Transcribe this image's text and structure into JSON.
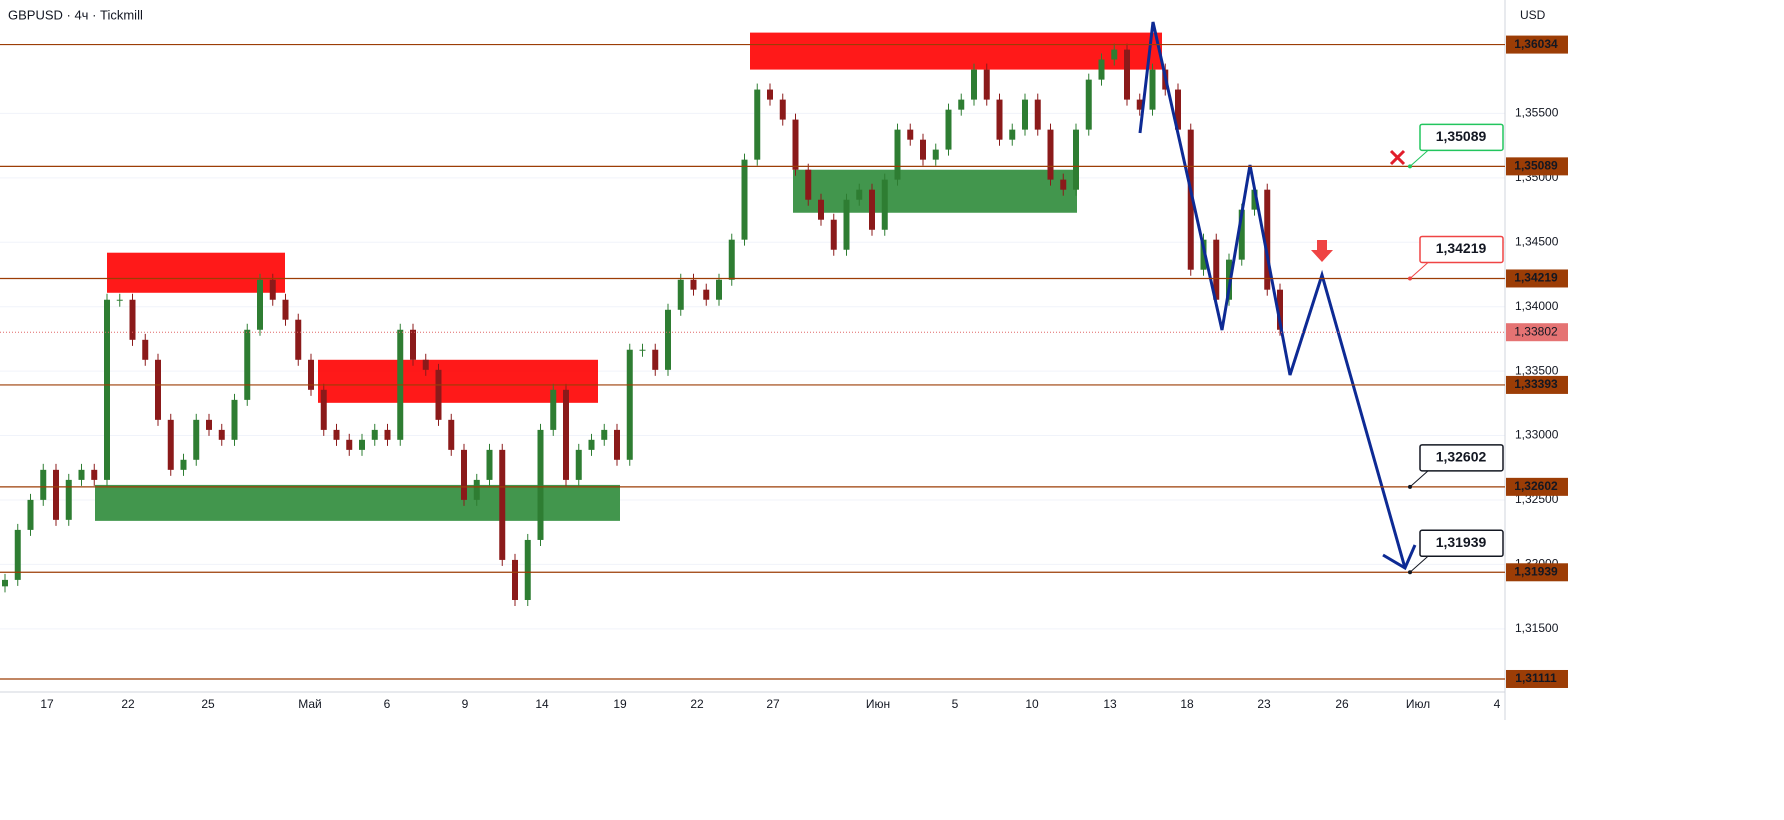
{
  "header": {
    "title": "GBPUSD · 4ч · Tickmill",
    "currency": "USD"
  },
  "chart_data": {
    "type": "candlestick",
    "closes": [
      1.3188,
      1.32268,
      1.32501,
      1.32734,
      1.32346,
      1.32656,
      1.32734,
      1.32656,
      1.34054,
      1.34054,
      1.33743,
      1.33588,
      1.33122,
      1.32734,
      1.32812,
      1.33122,
      1.33044,
      1.32967,
      1.33277,
      1.33821,
      1.34209,
      1.34054,
      1.33899,
      1.33588,
      1.33355,
      1.33044,
      1.32967,
      1.32889,
      1.32967,
      1.33044,
      1.32967,
      1.33821,
      1.33588,
      1.3351,
      1.33122,
      1.32889,
      1.32501,
      1.32656,
      1.32889,
      1.32035,
      1.31724,
      1.3219,
      1.33044,
      1.33355,
      1.32656,
      1.32889,
      1.32967,
      1.33044,
      1.32812,
      1.33666,
      1.33666,
      1.3351,
      1.33976,
      1.34209,
      1.34132,
      1.34054,
      1.34209,
      1.3452,
      1.35141,
      1.35685,
      1.35607,
      1.35452,
      1.35063,
      1.3483,
      1.34675,
      1.34442,
      1.3483,
      1.34908,
      1.34597,
      1.34986,
      1.35374,
      1.35296,
      1.35141,
      1.35219,
      1.35529,
      1.35607,
      1.3584,
      1.35607,
      1.35296,
      1.35374,
      1.35607,
      1.35374,
      1.34986,
      1.34908,
      1.35374,
      1.35762,
      1.35918,
      1.35995,
      1.35607,
      1.35529,
      1.3584,
      1.35685,
      1.35374,
      1.34287,
      1.3452,
      1.34054,
      1.34365,
      1.34753,
      1.34908,
      1.34132,
      1.33821
    ],
    "up_color": "#2e7d32",
    "down_color": "#8b1a1a",
    "ylim": [
      1.3101,
      1.3638
    ],
    "yticks": [
      {
        "value": 1.315,
        "label": "1,31500"
      },
      {
        "value": 1.32,
        "label": "1,32000"
      },
      {
        "value": 1.325,
        "label": "1,32500"
      },
      {
        "value": 1.33,
        "label": "1,33000"
      },
      {
        "value": 1.335,
        "label": "1,33500"
      },
      {
        "value": 1.34,
        "label": "1,34000"
      },
      {
        "value": 1.345,
        "label": "1,34500"
      },
      {
        "value": 1.35,
        "label": "1,35000"
      },
      {
        "value": 1.355,
        "label": "1,35500"
      }
    ],
    "grid": true,
    "levels": [
      {
        "value": 1.36034,
        "label": "1,36034"
      },
      {
        "value": 1.35089,
        "label": "1,35089"
      },
      {
        "value": 1.34219,
        "label": "1,34219"
      },
      {
        "value": 1.33393,
        "label": "1,33393"
      },
      {
        "value": 1.32602,
        "label": "1,32602"
      },
      {
        "value": 1.31939,
        "label": "1,31939"
      },
      {
        "value": 1.31111,
        "label": "1,31111"
      }
    ],
    "level_color": "#9c3d06",
    "current_price": {
      "value": 1.33802,
      "label": "1,33802"
    },
    "callouts": [
      {
        "value": 1.35089,
        "label": "1,35089",
        "color": "#22c55e"
      },
      {
        "value": 1.34219,
        "label": "1,34219",
        "color": "#ef4444"
      },
      {
        "value": 1.32602,
        "label": "1,32602",
        "color": "#131722"
      },
      {
        "value": 1.31939,
        "label": "1,31939",
        "color": "#131722"
      }
    ],
    "zones": [
      {
        "top": 1.36127,
        "bottom": 1.3584,
        "color": "#ff0000"
      },
      {
        "top": 1.35063,
        "bottom": 1.34729,
        "color": "#2e8b3a"
      },
      {
        "top": 1.34419,
        "bottom": 1.34108,
        "color": "#ff0000"
      },
      {
        "top": 1.33588,
        "bottom": 1.33254,
        "color": "#ff0000"
      },
      {
        "top": 1.32617,
        "bottom": 1.32338,
        "color": "#2e8b3a"
      }
    ],
    "dates": [
      "17",
      "22",
      "25",
      "Май",
      "6",
      "9",
      "14",
      "19",
      "22",
      "27",
      "Июн",
      "5",
      "10",
      "13",
      "18",
      "23",
      "26",
      "Июл",
      "4"
    ]
  }
}
